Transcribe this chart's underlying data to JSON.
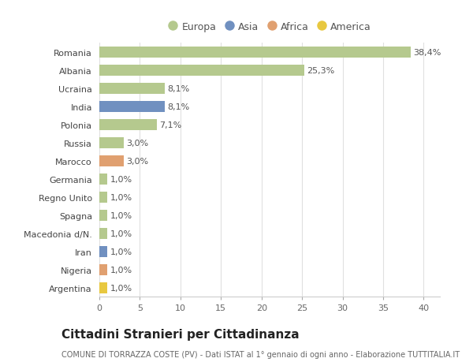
{
  "countries": [
    "Romania",
    "Albania",
    "Ucraina",
    "India",
    "Polonia",
    "Russia",
    "Marocco",
    "Germania",
    "Regno Unito",
    "Spagna",
    "Macedonia d/N.",
    "Iran",
    "Nigeria",
    "Argentina"
  ],
  "values": [
    38.4,
    25.3,
    8.1,
    8.1,
    7.1,
    3.0,
    3.0,
    1.0,
    1.0,
    1.0,
    1.0,
    1.0,
    1.0,
    1.0
  ],
  "labels": [
    "38,4%",
    "25,3%",
    "8,1%",
    "8,1%",
    "7,1%",
    "3,0%",
    "3,0%",
    "1,0%",
    "1,0%",
    "1,0%",
    "1,0%",
    "1,0%",
    "1,0%",
    "1,0%"
  ],
  "continent": [
    "Europa",
    "Europa",
    "Europa",
    "Asia",
    "Europa",
    "Europa",
    "Africa",
    "Europa",
    "Europa",
    "Europa",
    "Europa",
    "Asia",
    "Africa",
    "America"
  ],
  "colors": {
    "Europa": "#b5c98e",
    "Asia": "#7090c0",
    "Africa": "#e0a070",
    "America": "#e8c840"
  },
  "legend_colors": {
    "Europa": "#b5c98e",
    "Asia": "#7090c0",
    "Africa": "#e0a070",
    "America": "#e8c840"
  },
  "title": "Cittadini Stranieri per Cittadinanza",
  "subtitle": "COMUNE DI TORRAZZA COSTE (PV) - Dati ISTAT al 1° gennaio di ogni anno - Elaborazione TUTTITALIA.IT",
  "xlim": [
    0,
    42
  ],
  "xticks": [
    0,
    5,
    10,
    15,
    20,
    25,
    30,
    35,
    40
  ],
  "background_color": "#ffffff",
  "grid_color": "#e0e0e0",
  "bar_height": 0.6,
  "label_fontsize": 8,
  "title_fontsize": 11,
  "subtitle_fontsize": 7,
  "tick_fontsize": 8,
  "legend_fontsize": 9
}
